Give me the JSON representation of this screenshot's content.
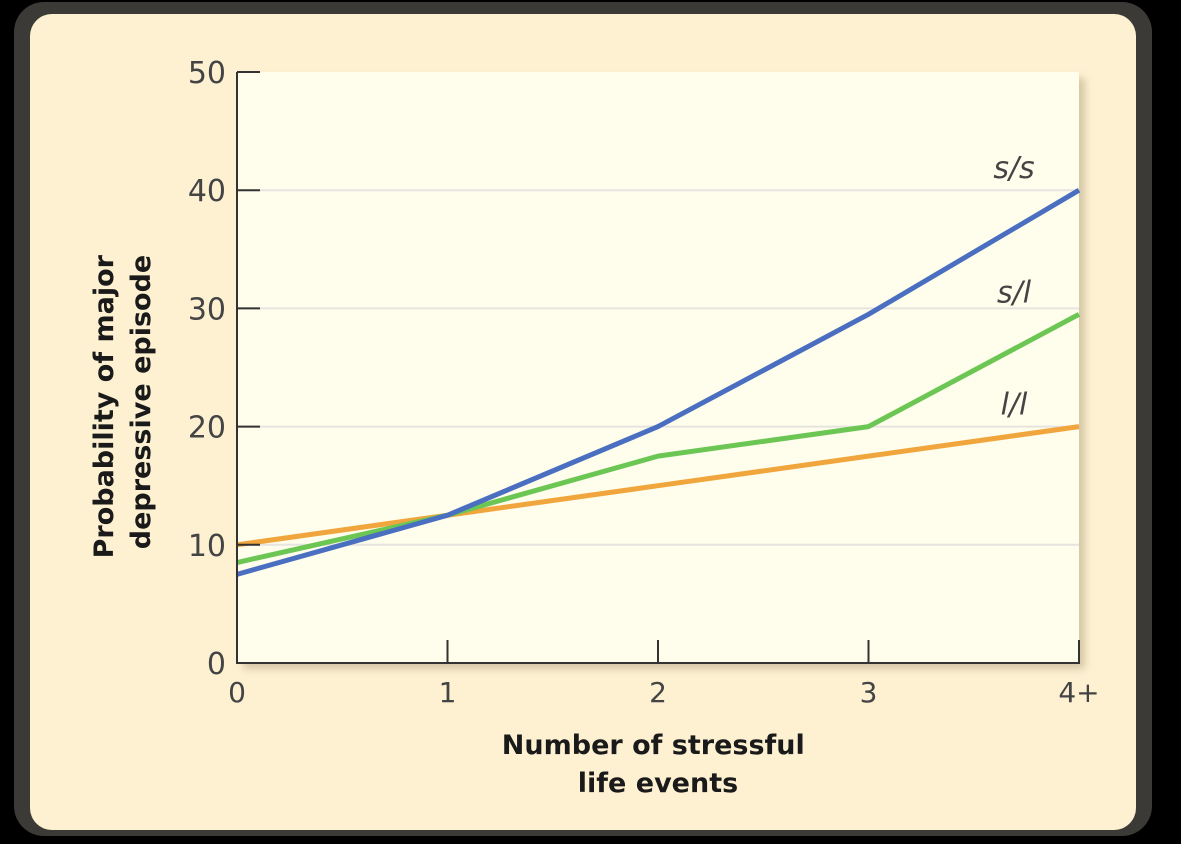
{
  "chart_data": {
    "type": "line",
    "xlabel": [
      "Number of stressful",
      "life events"
    ],
    "ylabel": [
      "Probability of major",
      "depressive episode"
    ],
    "x_categories": [
      "0",
      "1",
      "2",
      "3",
      "4+"
    ],
    "x_values": [
      0,
      1,
      2,
      3,
      4
    ],
    "ylim": [
      0,
      50
    ],
    "yticks": [
      0,
      10,
      20,
      30,
      40,
      50
    ],
    "grid": true,
    "series": [
      {
        "name": "s/s",
        "values": [
          7.5,
          12.5,
          20,
          29.5,
          40
        ],
        "color": "#4a6fc1"
      },
      {
        "name": "s/l",
        "values": [
          8.5,
          12.5,
          17.5,
          20,
          29.5
        ],
        "color": "#6cc654"
      },
      {
        "name": "l/l",
        "values": [
          10,
          12.5,
          15,
          17.5,
          20
        ],
        "color": "#f0a63c"
      }
    ]
  },
  "colors": {
    "plot_background": "#fffdeb",
    "card_background": "#fdf1d2",
    "gridline": "#e6e4df",
    "axis": "#333333",
    "tick_label": "#444444",
    "axis_title": "#1a1a1a"
  }
}
